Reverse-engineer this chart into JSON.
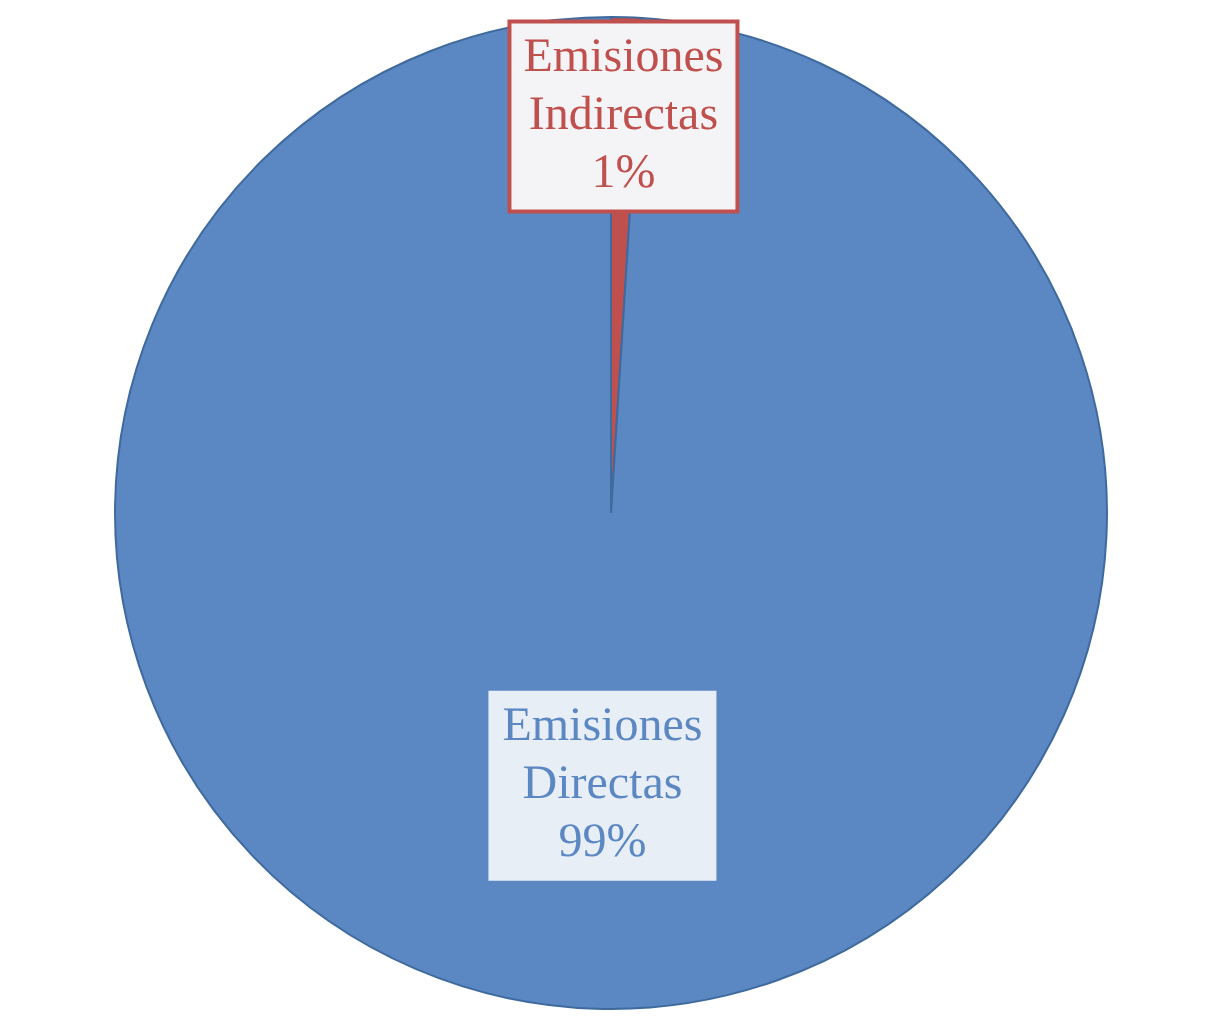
{
  "chart_data": {
    "type": "pie",
    "categories": [
      "Emisiones Indirectas",
      "Emisiones Directas"
    ],
    "values": [
      1,
      99
    ],
    "colors": [
      "#c0504d",
      "#5b87c2"
    ],
    "value_labels": [
      "1%",
      "99%"
    ],
    "legend": false
  }
}
